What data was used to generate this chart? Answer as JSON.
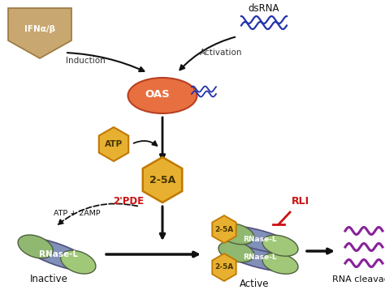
{
  "background_color": "#ffffff",
  "ifn_text": "IFNα/β",
  "ifn_shape_color": "#c8a870",
  "ifn_edge_color": "#9a7840",
  "dsrna_color": "#2233aa",
  "dsrna_text": "dsRNA",
  "oas_color": "#e87040",
  "oas_edge_color": "#b84020",
  "oas_text": "OAS",
  "atp_color": "#e8b030",
  "atp_text": "ATP",
  "hexagon_edge_color": "#c07800",
  "twofivea_color": "#e8b030",
  "twofivea_text": "2-5A",
  "rnase_body_color": "#8090b8",
  "rnase_end_color_top": "#90b870",
  "rnase_end_color_bot": "#a0c878",
  "rnase_text": "RNase-L",
  "inactive_label": "Inactive",
  "active_label": "Active",
  "rna_cleavage_label": "RNA cleavage",
  "pde_text": "2'PDE",
  "pde_color": "#cc1111",
  "rli_text": "RLI",
  "rli_color": "#cc1111",
  "atp2amp_text": "ATP + 2AMP",
  "induction_text": "Induction",
  "activation_text": "Activation",
  "arrow_color": "#111111",
  "rna_wave_color": "#882299"
}
